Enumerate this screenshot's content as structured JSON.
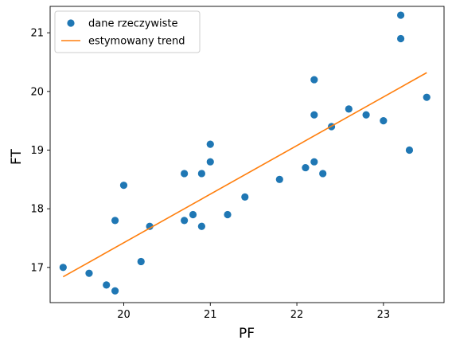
{
  "chart_data": {
    "type": "scatter",
    "xlabel": "PF",
    "ylabel": "FT",
    "xlim": [
      19.15,
      23.7
    ],
    "ylim": [
      16.4,
      21.45
    ],
    "xticks": [
      20,
      21,
      22,
      23
    ],
    "yticks": [
      17,
      18,
      19,
      20,
      21
    ],
    "grid": false,
    "legend_position": "top-left",
    "series": [
      {
        "name": "dane rzeczywiste",
        "kind": "scatter",
        "color": "#1f77b4",
        "points": [
          {
            "x": 19.3,
            "y": 17.0
          },
          {
            "x": 19.6,
            "y": 16.9
          },
          {
            "x": 19.8,
            "y": 16.7
          },
          {
            "x": 19.9,
            "y": 16.6
          },
          {
            "x": 19.9,
            "y": 17.8
          },
          {
            "x": 20.0,
            "y": 18.4
          },
          {
            "x": 20.2,
            "y": 17.1
          },
          {
            "x": 20.3,
            "y": 17.7
          },
          {
            "x": 20.7,
            "y": 18.6
          },
          {
            "x": 20.7,
            "y": 17.8
          },
          {
            "x": 20.8,
            "y": 17.9
          },
          {
            "x": 20.9,
            "y": 18.6
          },
          {
            "x": 20.9,
            "y": 17.7
          },
          {
            "x": 21.0,
            "y": 19.1
          },
          {
            "x": 21.0,
            "y": 18.8
          },
          {
            "x": 21.2,
            "y": 17.9
          },
          {
            "x": 21.4,
            "y": 18.2
          },
          {
            "x": 21.8,
            "y": 18.5
          },
          {
            "x": 22.1,
            "y": 18.7
          },
          {
            "x": 22.2,
            "y": 20.2
          },
          {
            "x": 22.2,
            "y": 19.6
          },
          {
            "x": 22.2,
            "y": 18.8
          },
          {
            "x": 22.3,
            "y": 18.6
          },
          {
            "x": 22.4,
            "y": 19.4
          },
          {
            "x": 22.6,
            "y": 19.7
          },
          {
            "x": 22.8,
            "y": 19.6
          },
          {
            "x": 23.0,
            "y": 19.5
          },
          {
            "x": 23.2,
            "y": 21.3
          },
          {
            "x": 23.2,
            "y": 20.9
          },
          {
            "x": 23.3,
            "y": 19.0
          },
          {
            "x": 23.5,
            "y": 19.9
          }
        ]
      },
      {
        "name": "estymowany trend",
        "kind": "line",
        "color": "#ff7f0e",
        "points": [
          {
            "x": 19.3,
            "y": 16.84
          },
          {
            "x": 23.5,
            "y": 20.32
          }
        ]
      }
    ]
  }
}
